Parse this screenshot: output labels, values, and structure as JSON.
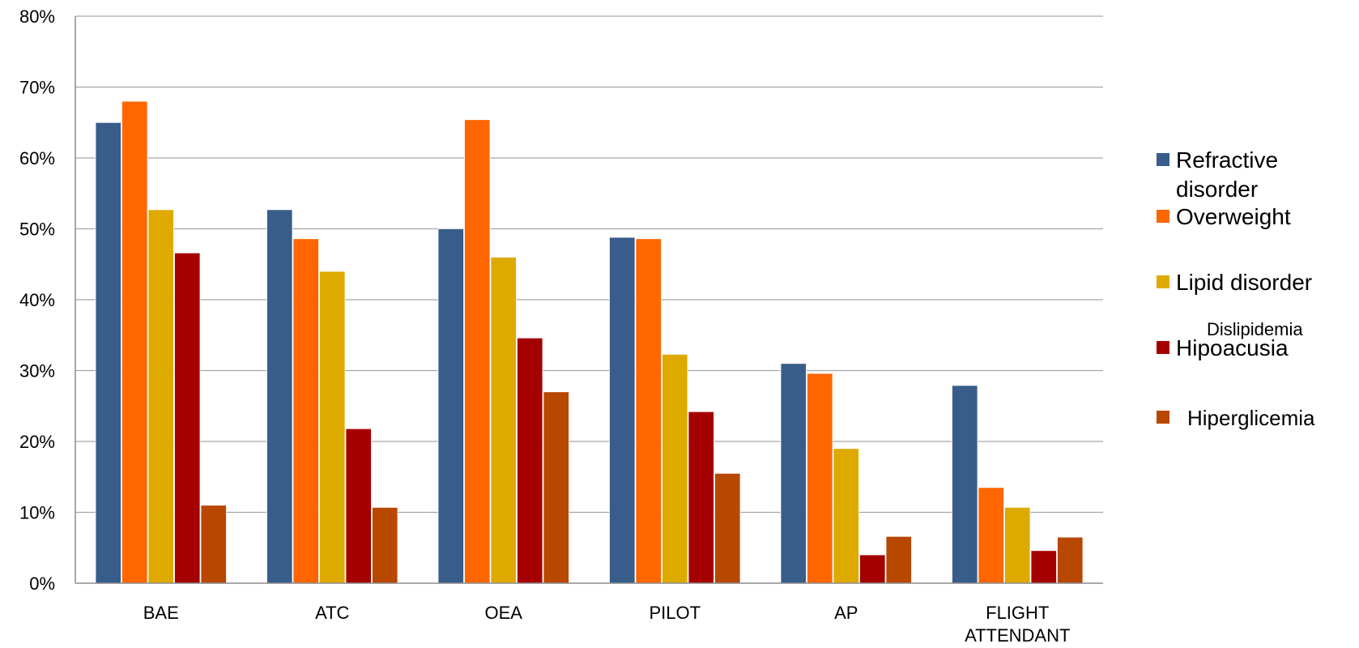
{
  "chart_data": {
    "type": "bar",
    "categories": [
      "BAE",
      "ATC",
      "OEA",
      "PILOT",
      "AP",
      "FLIGHT ATTENDANT"
    ],
    "series": [
      {
        "name": "Refractive disorder",
        "color": "#385D8A",
        "values": [
          0.65,
          0.527,
          0.5,
          0.488,
          0.31,
          0.279
        ]
      },
      {
        "name": "Overweight",
        "color": "#FF6600",
        "values": [
          0.68,
          0.486,
          0.654,
          0.486,
          0.296,
          0.135
        ]
      },
      {
        "name": "Lipid disorder",
        "color": "#DEAA00",
        "values": [
          0.527,
          0.44,
          0.46,
          0.323,
          0.19,
          0.107
        ]
      },
      {
        "name": "Hipoacusia",
        "color": "#A50000",
        "values": [
          0.466,
          0.218,
          0.346,
          0.242,
          0.04,
          0.046
        ]
      },
      {
        "name": "Hiperglicemia",
        "color": "#B84700",
        "values": [
          0.11,
          0.107,
          0.27,
          0.155,
          0.066,
          0.065
        ]
      }
    ],
    "legend_sub_label": "Dislipidemia",
    "yticks": [
      "0%",
      "10%",
      "20%",
      "30%",
      "40%",
      "50%",
      "60%",
      "70%",
      "80%"
    ],
    "ylim": [
      0,
      0.8
    ],
    "grid": true,
    "legend_position": "right"
  }
}
